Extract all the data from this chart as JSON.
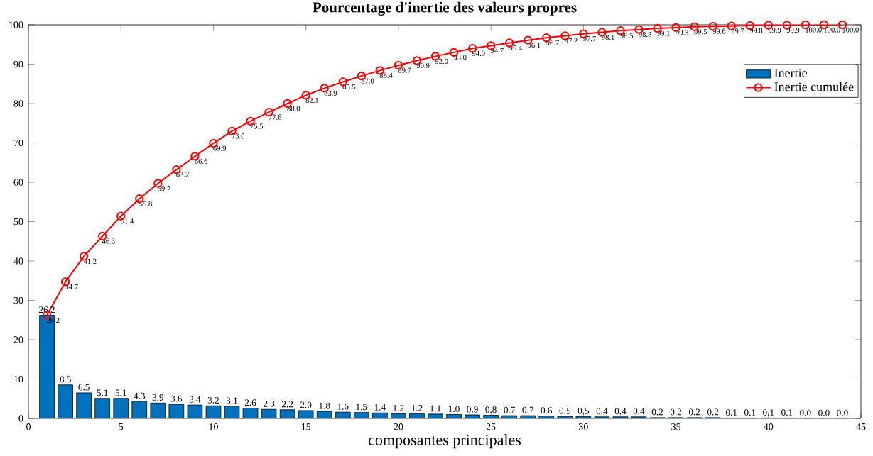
{
  "chart_data": {
    "type": "bar",
    "title": "Pourcentage d'inertie des  valeurs propres",
    "xlabel": "composantes principales",
    "x": [
      1,
      2,
      3,
      4,
      5,
      6,
      7,
      8,
      9,
      10,
      11,
      12,
      13,
      14,
      15,
      16,
      17,
      18,
      19,
      20,
      21,
      22,
      23,
      24,
      25,
      26,
      27,
      28,
      29,
      30,
      31,
      32,
      33,
      34,
      35,
      36,
      37,
      38,
      39,
      40,
      41,
      42,
      43,
      44
    ],
    "series": [
      {
        "name": "Inertie",
        "color": "#0072bd",
        "values": [
          26.2,
          8.5,
          6.5,
          5.1,
          5.1,
          4.3,
          3.9,
          3.6,
          3.4,
          3.2,
          3.1,
          2.6,
          2.3,
          2.2,
          2.0,
          1.8,
          1.6,
          1.5,
          1.4,
          1.2,
          1.2,
          1.1,
          1.0,
          0.9,
          0.8,
          0.7,
          0.7,
          0.6,
          0.5,
          0.5,
          0.4,
          0.4,
          0.4,
          0.2,
          0.2,
          0.2,
          0.2,
          0.1,
          0.1,
          0.1,
          0.1,
          0.0,
          0.0,
          0.0
        ],
        "value_labels": [
          "26.2",
          "8.5",
          "6.5",
          "5.1",
          "5.1",
          "4.3",
          "3.9",
          "3.6",
          "3.4",
          "3.2",
          "3.1",
          "2.6",
          "2.3",
          "2.2",
          "2.0",
          "1.8",
          "1.6",
          "1.5",
          "1.4",
          "1.2",
          "1.2",
          "1.1",
          "1.0",
          "0.9",
          "0.8",
          "0.7",
          "0.7",
          "0.6",
          "0.5",
          "0.5",
          "0.4",
          "0.4",
          "0.4",
          "0.2",
          "0.2",
          "0.2",
          "0.2",
          "0.1",
          "0.1",
          "0.1",
          "0.1",
          "0.0",
          "0.0",
          "0.0"
        ]
      },
      {
        "name": "Inertie cumulée",
        "type": "line",
        "color": "#ff0000",
        "marker": "circle",
        "values": [
          26.2,
          34.7,
          41.2,
          46.3,
          51.4,
          55.8,
          59.7,
          63.2,
          66.6,
          69.9,
          73.0,
          75.5,
          77.8,
          80.0,
          82.1,
          83.9,
          85.5,
          87.0,
          88.4,
          89.7,
          90.9,
          92.0,
          93.0,
          94.0,
          94.7,
          95.4,
          96.1,
          96.7,
          97.2,
          97.7,
          98.1,
          98.5,
          98.8,
          99.1,
          99.3,
          99.5,
          99.6,
          99.7,
          99.8,
          99.9,
          99.9,
          100.0,
          100.0,
          100.0
        ],
        "value_labels": [
          "26.2",
          "34.7",
          "41.2",
          "46.3",
          "51.4",
          "55.8",
          "59.7",
          "63.2",
          "66.6",
          "69.9",
          "73.0",
          "75.5",
          "77.8",
          "80.0",
          "82.1",
          "83.9",
          "85.5",
          "87.0",
          "88.4",
          "89.7",
          "90.9",
          "92.0",
          "93.0",
          "94.0",
          "94.7",
          "95.4",
          "96.1",
          "96.7",
          "97.2",
          "97.7",
          "98.1",
          "98.5",
          "98.8",
          "99.1",
          "99.3",
          "99.5",
          "99.6",
          "99.7",
          "99.8",
          "99.9",
          "99.9",
          "100.0",
          "100.0",
          "100.0"
        ]
      }
    ],
    "xlim": [
      0,
      45
    ],
    "xticks": [
      0,
      5,
      10,
      15,
      20,
      25,
      30,
      35,
      40,
      45
    ],
    "ylim": [
      0,
      100
    ],
    "yticks": [
      0,
      10,
      20,
      30,
      40,
      50,
      60,
      70,
      80,
      90,
      100
    ],
    "grid": false,
    "legend": "top right"
  }
}
